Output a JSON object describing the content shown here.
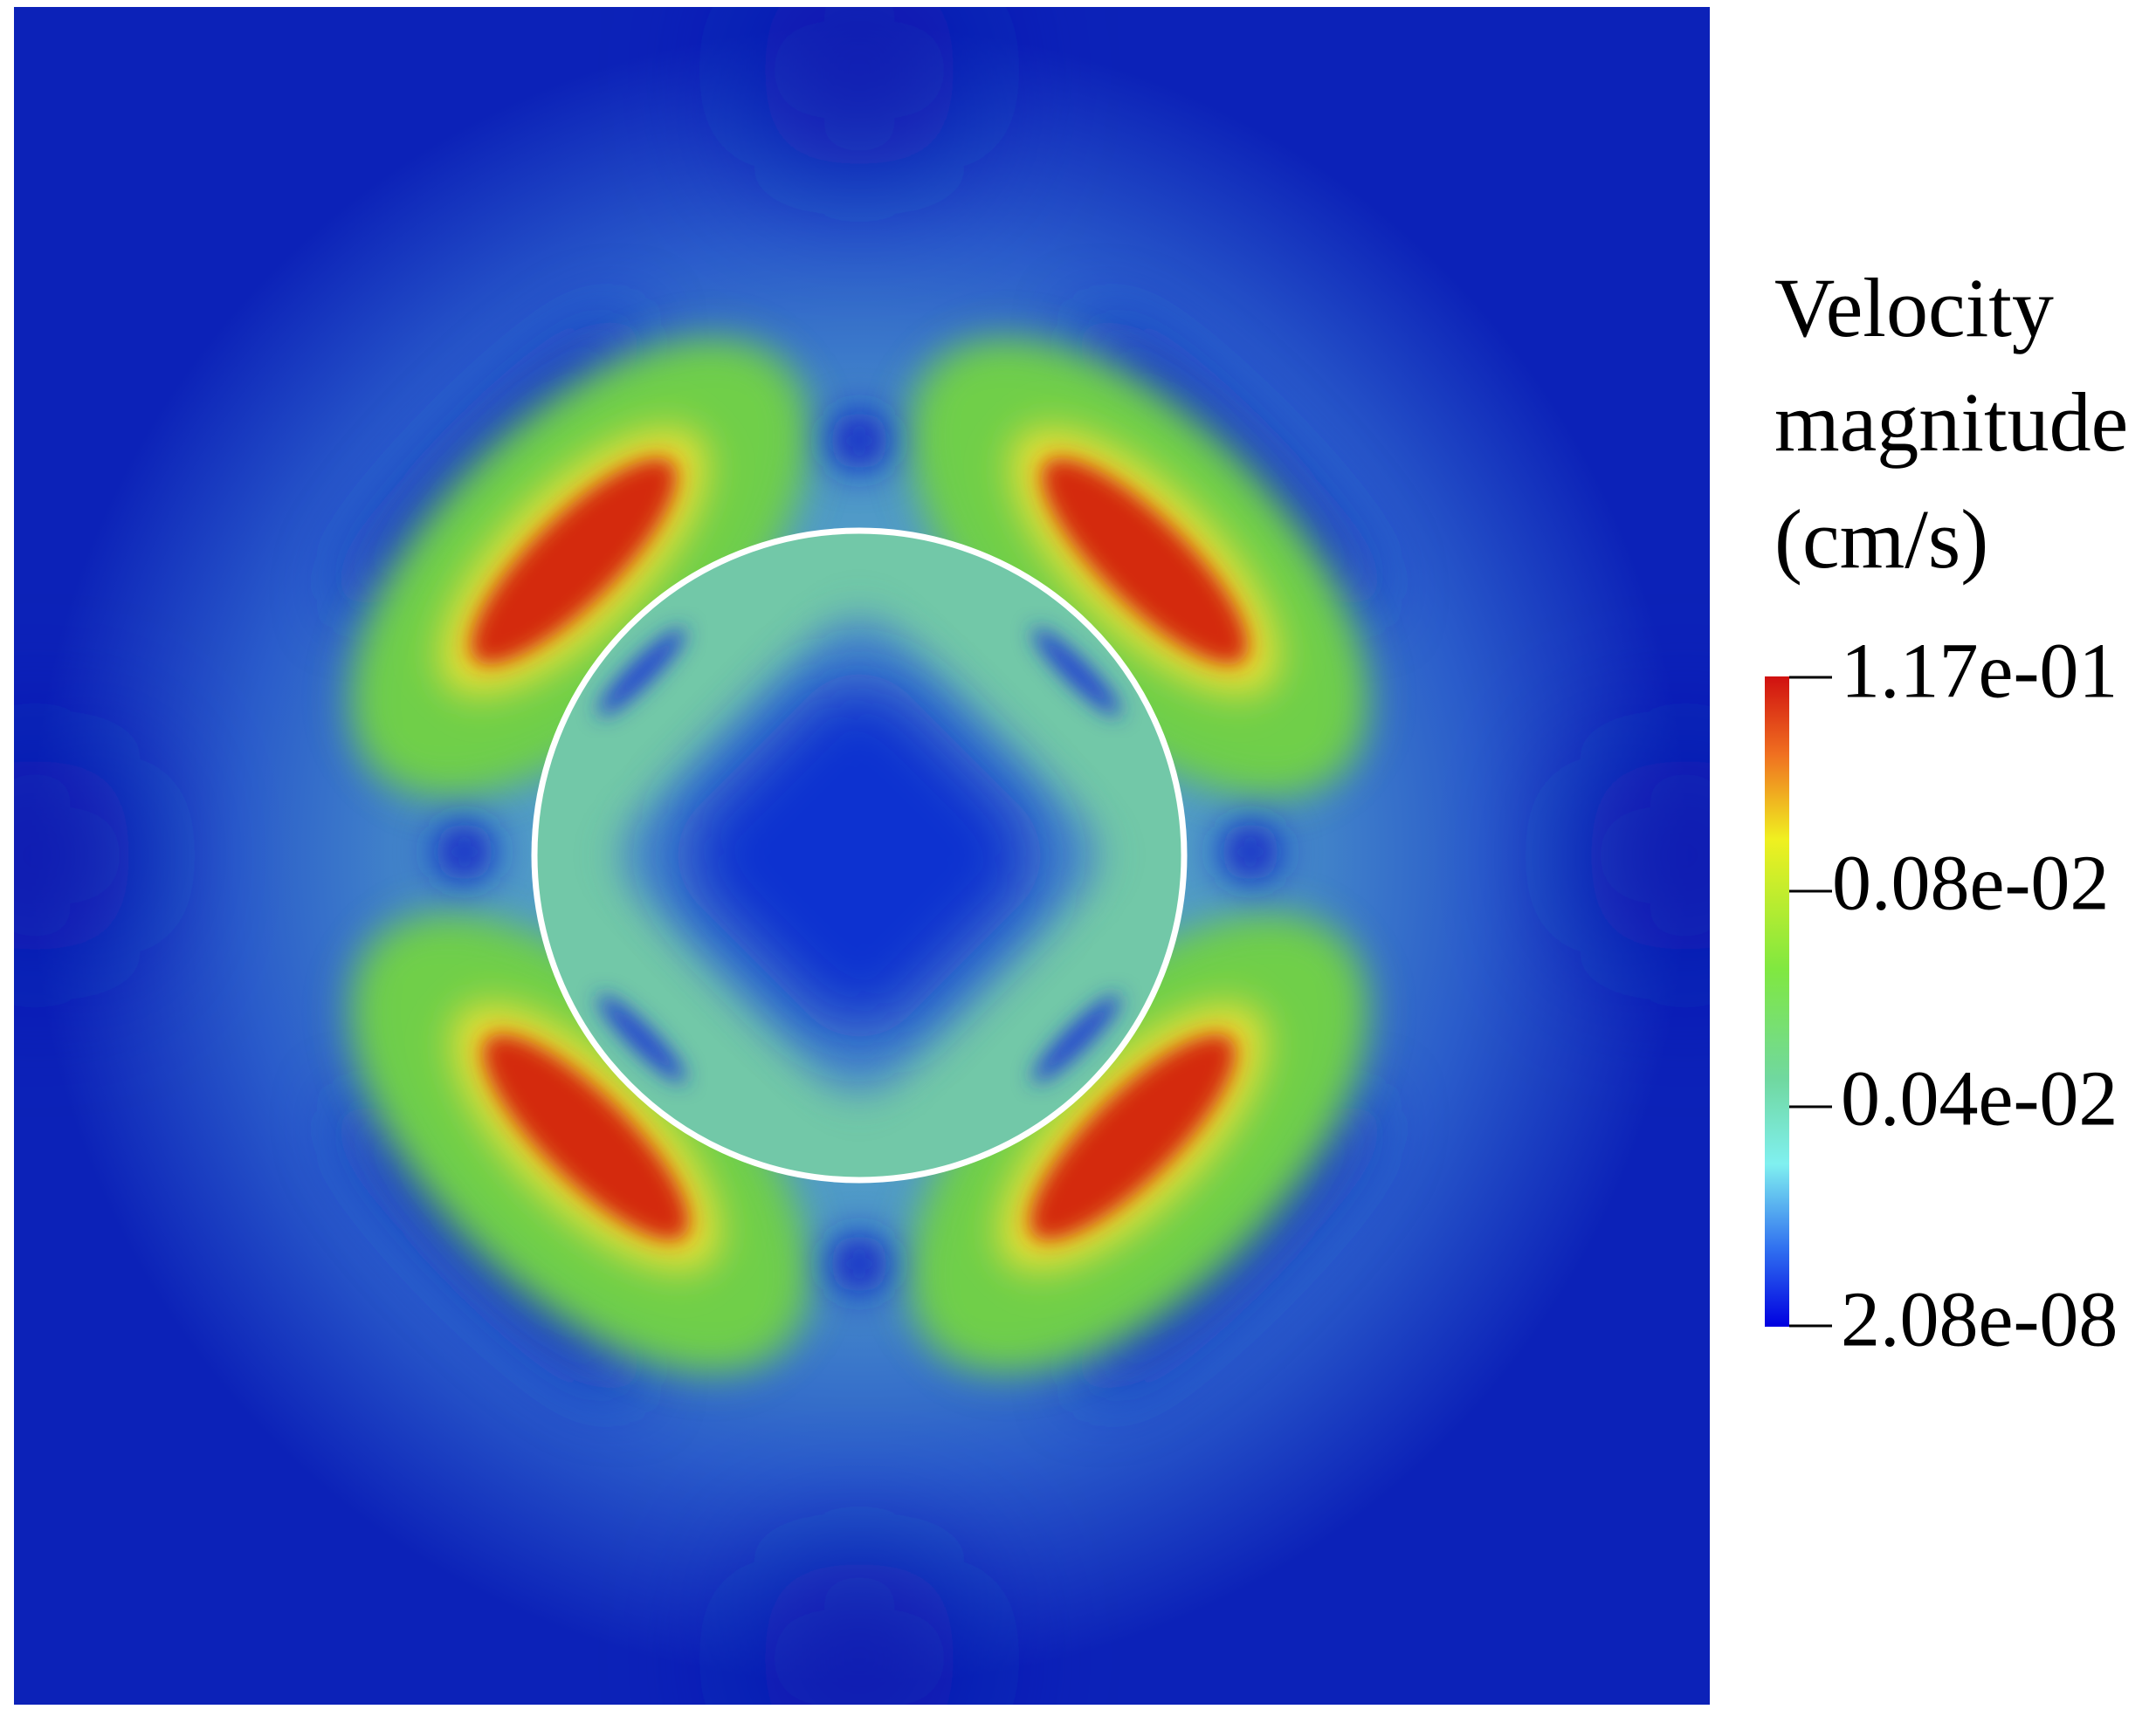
{
  "legend": {
    "title": [
      "Velocity",
      "magnitude",
      "(cm/s)"
    ],
    "ticks": [
      "1.17e-01",
      "0.08e-02",
      "0.04e-02",
      "2.08e-08"
    ]
  }
}
